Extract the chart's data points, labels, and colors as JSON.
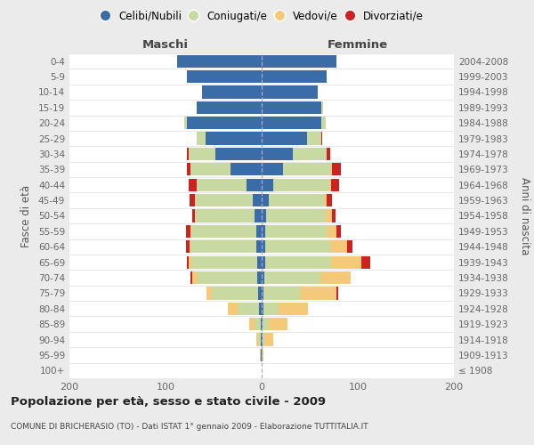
{
  "age_groups": [
    "100+",
    "95-99",
    "90-94",
    "85-89",
    "80-84",
    "75-79",
    "70-74",
    "65-69",
    "60-64",
    "55-59",
    "50-54",
    "45-49",
    "40-44",
    "35-39",
    "30-34",
    "25-29",
    "20-24",
    "15-19",
    "10-14",
    "5-9",
    "0-4"
  ],
  "birth_years": [
    "≤ 1908",
    "1909-1913",
    "1914-1918",
    "1919-1923",
    "1924-1928",
    "1929-1933",
    "1934-1938",
    "1939-1943",
    "1944-1948",
    "1949-1953",
    "1954-1958",
    "1959-1963",
    "1964-1968",
    "1969-1973",
    "1974-1978",
    "1979-1983",
    "1984-1988",
    "1989-1993",
    "1994-1998",
    "1999-2003",
    "2004-2008"
  ],
  "males": {
    "celibi": [
      0,
      1,
      1,
      1,
      3,
      4,
      5,
      5,
      6,
      6,
      7,
      9,
      16,
      32,
      48,
      58,
      78,
      68,
      62,
      78,
      88
    ],
    "coniugati": [
      0,
      1,
      3,
      6,
      22,
      48,
      62,
      68,
      68,
      67,
      62,
      60,
      52,
      42,
      28,
      10,
      3,
      0,
      0,
      0,
      0
    ],
    "vedovi": [
      0,
      0,
      2,
      6,
      10,
      5,
      5,
      3,
      1,
      1,
      0,
      0,
      0,
      0,
      0,
      0,
      0,
      0,
      0,
      0,
      0
    ],
    "divorziati": [
      0,
      0,
      0,
      0,
      0,
      0,
      2,
      2,
      4,
      5,
      3,
      6,
      8,
      4,
      2,
      0,
      0,
      0,
      0,
      0,
      0
    ]
  },
  "females": {
    "nubili": [
      0,
      0,
      1,
      1,
      2,
      2,
      3,
      4,
      4,
      4,
      5,
      7,
      12,
      22,
      32,
      47,
      62,
      62,
      58,
      68,
      78
    ],
    "coniugate": [
      0,
      0,
      2,
      6,
      16,
      38,
      58,
      68,
      67,
      64,
      62,
      58,
      58,
      50,
      36,
      15,
      5,
      2,
      0,
      0,
      0
    ],
    "vedove": [
      0,
      2,
      9,
      20,
      30,
      38,
      32,
      32,
      18,
      10,
      6,
      3,
      2,
      1,
      0,
      0,
      0,
      0,
      0,
      0,
      0
    ],
    "divorziate": [
      0,
      0,
      0,
      0,
      0,
      2,
      0,
      9,
      5,
      4,
      4,
      5,
      9,
      9,
      3,
      1,
      0,
      0,
      0,
      0,
      0
    ]
  },
  "colors": {
    "celibi": "#3a6ca8",
    "coniugati": "#c8daa2",
    "vedovi": "#f5c97a",
    "divorziati": "#cc2222"
  },
  "title": "Popolazione per età, sesso e stato civile - 2009",
  "subtitle": "COMUNE DI BRICHERASIO (TO) - Dati ISTAT 1° gennaio 2009 - Elaborazione TUTTITALIA.IT",
  "header_left": "Maschi",
  "header_right": "Femmine",
  "ylabel_left": "Fasce di età",
  "ylabel_right": "Anni di nascita",
  "xlim": 200,
  "bg_color": "#ebebeb",
  "plot_bg": "#ffffff",
  "legend_labels": [
    "Celibi/Nubili",
    "Coniugati/e",
    "Vedovi/e",
    "Divorziati/e"
  ],
  "xticks": [
    -200,
    -100,
    0,
    100,
    200
  ]
}
